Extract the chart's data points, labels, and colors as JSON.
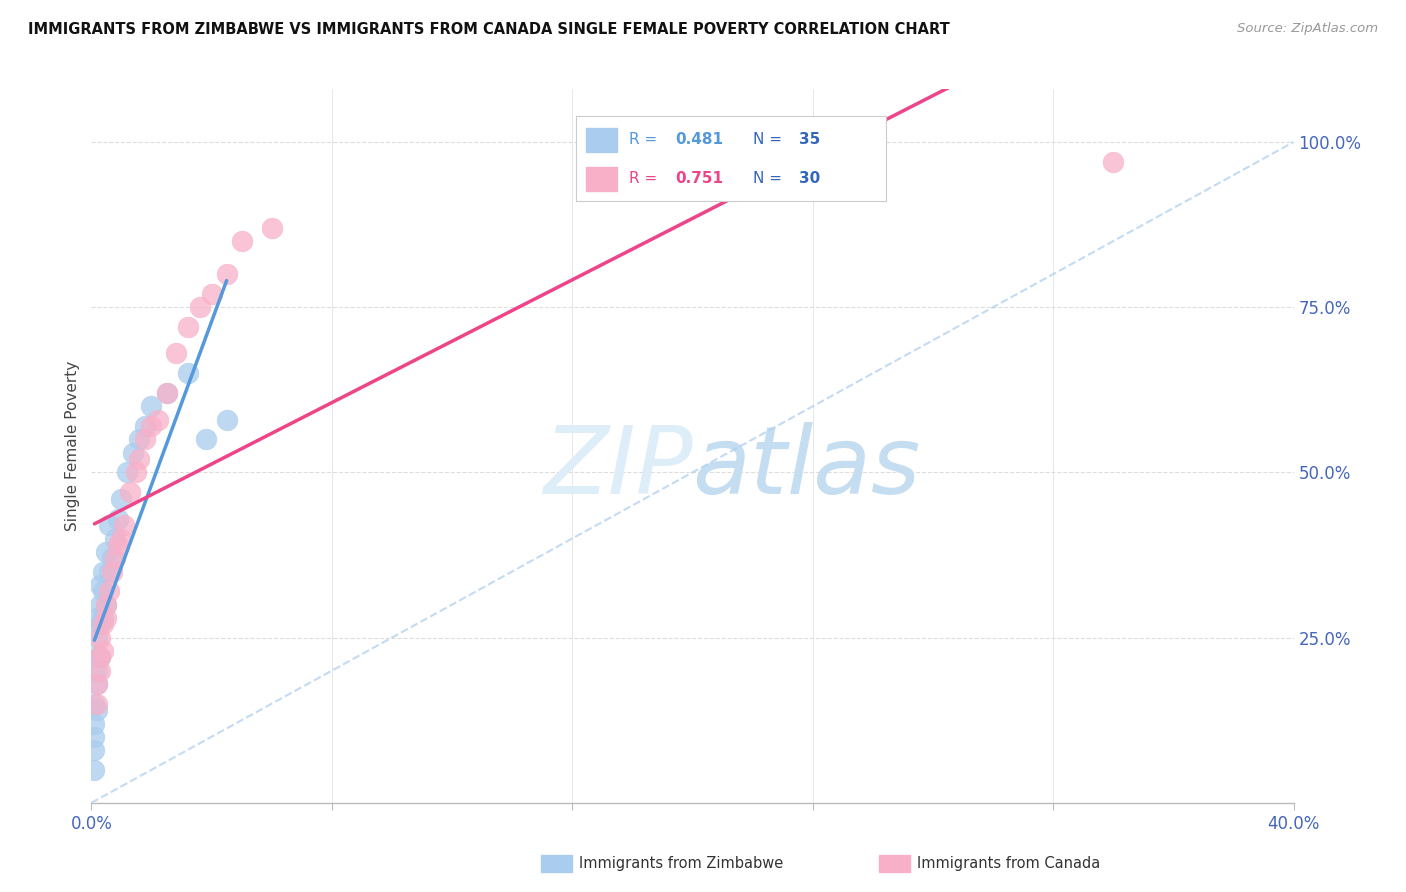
{
  "title": "IMMIGRANTS FROM ZIMBABWE VS IMMIGRANTS FROM CANADA SINGLE FEMALE POVERTY CORRELATION CHART",
  "source": "Source: ZipAtlas.com",
  "ylabel": "Single Female Poverty",
  "xmin": 0.0,
  "xmax": 0.4,
  "ymin": 0.0,
  "ymax": 1.08,
  "right_yticks": [
    0.25,
    0.5,
    0.75,
    1.0
  ],
  "right_yticklabels": [
    "25.0%",
    "50.0%",
    "75.0%",
    "100.0%"
  ],
  "xticks": [
    0.0,
    0.08,
    0.16,
    0.24,
    0.32,
    0.4
  ],
  "xticklabels": [
    "0.0%",
    "",
    "",
    "",
    "",
    "40.0%"
  ],
  "color_zimbabwe": "#aaccee",
  "color_canada": "#f8b0c8",
  "color_zimbabwe_line": "#5599dd",
  "color_canada_line": "#ee4488",
  "watermark_zip": "ZIP",
  "watermark_atlas": "atlas",
  "watermark_color_zip": "#ddeeff",
  "watermark_color_atlas": "#bbddff",
  "legend_label_zimbabwe": "Immigrants from Zimbabwe",
  "legend_label_canada": "Immigrants from Canada",
  "zimbabwe_x": [
    0.001,
    0.001,
    0.001,
    0.001,
    0.001,
    0.002,
    0.002,
    0.002,
    0.002,
    0.002,
    0.002,
    0.003,
    0.003,
    0.003,
    0.003,
    0.004,
    0.004,
    0.004,
    0.005,
    0.005,
    0.006,
    0.006,
    0.007,
    0.008,
    0.009,
    0.01,
    0.012,
    0.014,
    0.016,
    0.018,
    0.02,
    0.025,
    0.032,
    0.038,
    0.045
  ],
  "zimbabwe_y": [
    0.05,
    0.08,
    0.1,
    0.12,
    0.15,
    0.14,
    0.18,
    0.2,
    0.22,
    0.25,
    0.28,
    0.22,
    0.27,
    0.3,
    0.33,
    0.28,
    0.32,
    0.35,
    0.3,
    0.38,
    0.35,
    0.42,
    0.37,
    0.4,
    0.43,
    0.46,
    0.5,
    0.53,
    0.55,
    0.57,
    0.6,
    0.62,
    0.65,
    0.55,
    0.58
  ],
  "canada_x": [
    0.002,
    0.002,
    0.003,
    0.003,
    0.003,
    0.004,
    0.004,
    0.005,
    0.005,
    0.006,
    0.007,
    0.008,
    0.009,
    0.01,
    0.011,
    0.013,
    0.015,
    0.016,
    0.018,
    0.02,
    0.022,
    0.025,
    0.028,
    0.032,
    0.036,
    0.04,
    0.045,
    0.05,
    0.06,
    0.34
  ],
  "canada_y": [
    0.15,
    0.18,
    0.2,
    0.22,
    0.25,
    0.23,
    0.27,
    0.28,
    0.3,
    0.32,
    0.35,
    0.37,
    0.39,
    0.4,
    0.42,
    0.47,
    0.5,
    0.52,
    0.55,
    0.57,
    0.58,
    0.62,
    0.68,
    0.72,
    0.75,
    0.77,
    0.8,
    0.85,
    0.87,
    0.97
  ],
  "zim_line_x_start": 0.001,
  "zim_line_x_end": 0.045,
  "can_line_x_start": 0.001,
  "can_line_x_end": 0.34,
  "ref_line_color": "#aabbcc",
  "ref_line_style": "--",
  "grid_color": "#dddddd",
  "grid_style": "--",
  "legend_r1": "R = 0.481",
  "legend_n1": "N = 35",
  "legend_r2": "R = 0.751",
  "legend_n2": "N = 30",
  "r_color": "#5599dd",
  "r2_color": "#ee4488",
  "n_color": "#3366bb"
}
